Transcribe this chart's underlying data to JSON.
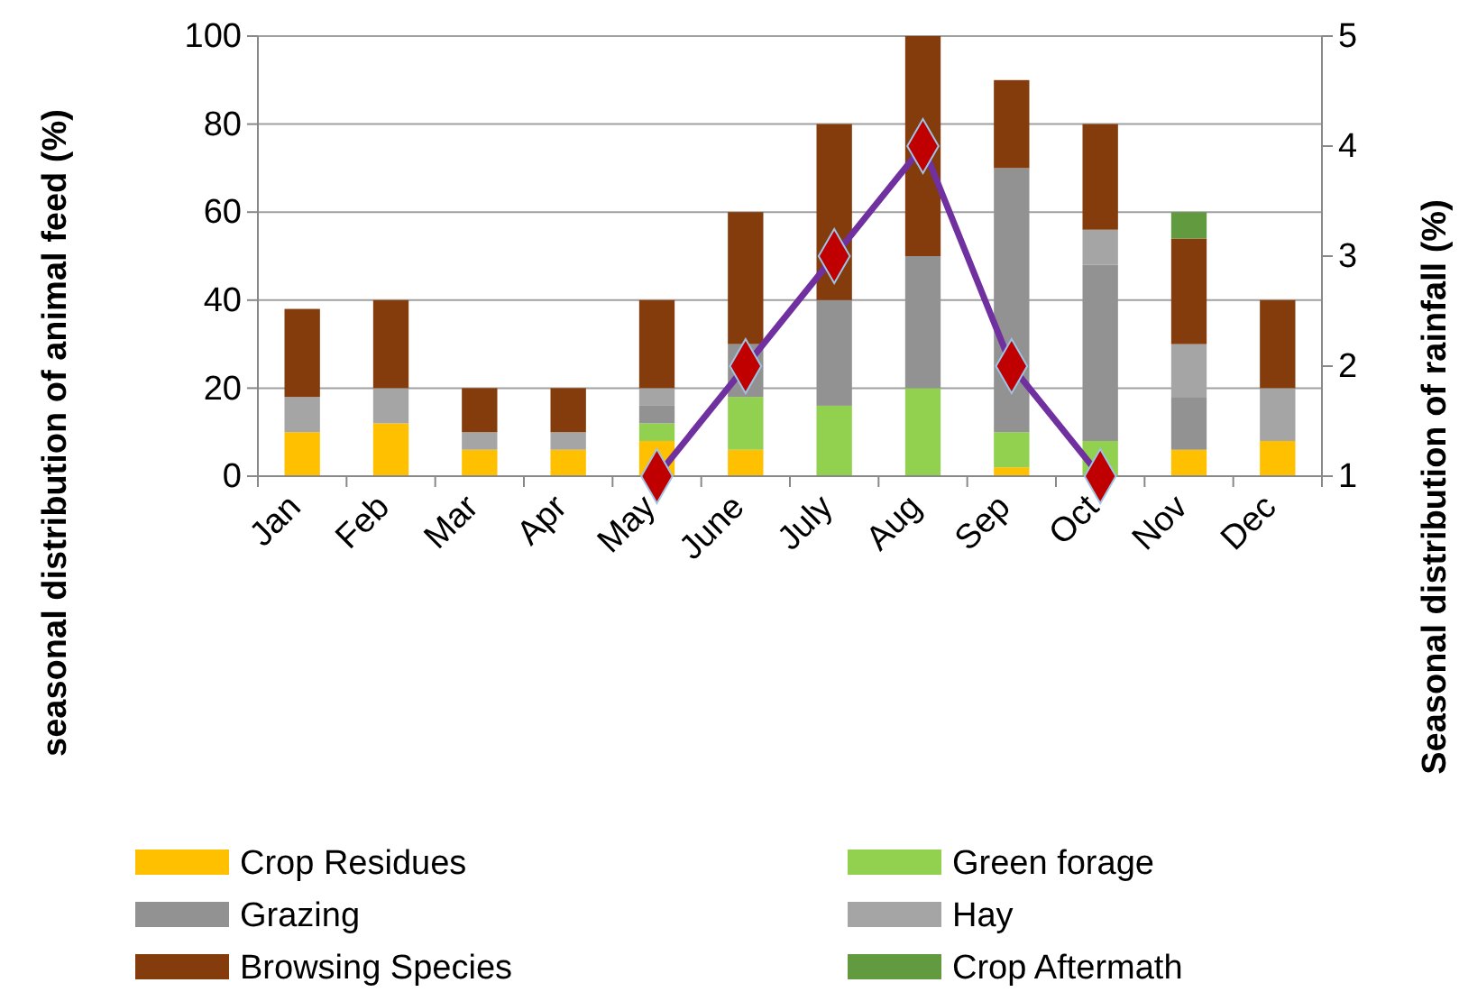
{
  "chart_data": {
    "type": "bar",
    "stacked": true,
    "categories": [
      "Jan",
      "Feb",
      "Mar",
      "Apr",
      "May",
      "June",
      "July",
      "Aug",
      "Sep",
      "Oct",
      "Nov",
      "Dec"
    ],
    "series": [
      {
        "name": "Crop Residues",
        "color": "#ffc000",
        "values": [
          10,
          12,
          6,
          6,
          8,
          6,
          0,
          0,
          2,
          0,
          6,
          8
        ]
      },
      {
        "name": "Green forage",
        "color": "#92d050",
        "values": [
          0,
          0,
          0,
          0,
          4,
          12,
          16,
          20,
          8,
          8,
          0,
          0
        ]
      },
      {
        "name": "Grazing",
        "color": "#929292",
        "values": [
          0,
          0,
          0,
          0,
          4,
          12,
          24,
          30,
          60,
          40,
          12,
          0
        ]
      },
      {
        "name": "Hay",
        "color": "#a5a5a5",
        "values": [
          8,
          8,
          4,
          4,
          4,
          0,
          0,
          0,
          0,
          8,
          12,
          12
        ]
      },
      {
        "name": "Browsing Species",
        "color": "#843c0c",
        "values": [
          20,
          20,
          10,
          10,
          20,
          30,
          40,
          50,
          20,
          24,
          24,
          20
        ]
      },
      {
        "name": "Crop Aftermath",
        "color": "#629b3f",
        "values": [
          0,
          0,
          0,
          0,
          0,
          0,
          0,
          0,
          0,
          0,
          6,
          0
        ]
      },
      {
        "type": "line",
        "axis": "y2",
        "color": "#7030a0",
        "marker": "diamond",
        "values": [
          null,
          null,
          null,
          null,
          1,
          2,
          3,
          4,
          2,
          1,
          null,
          null
        ]
      }
    ],
    "ylabel": "seasonal distribution of animal  feed (%)",
    "y2label": "Seasonal distribution of rainfall (%)",
    "ylim": [
      0,
      100
    ],
    "yticks": [
      0,
      20,
      40,
      60,
      80,
      100
    ],
    "y2lim": [
      1,
      5
    ],
    "y2ticks": [
      1,
      2,
      3,
      4,
      5
    ],
    "grid": "y",
    "legend": "bottom"
  }
}
